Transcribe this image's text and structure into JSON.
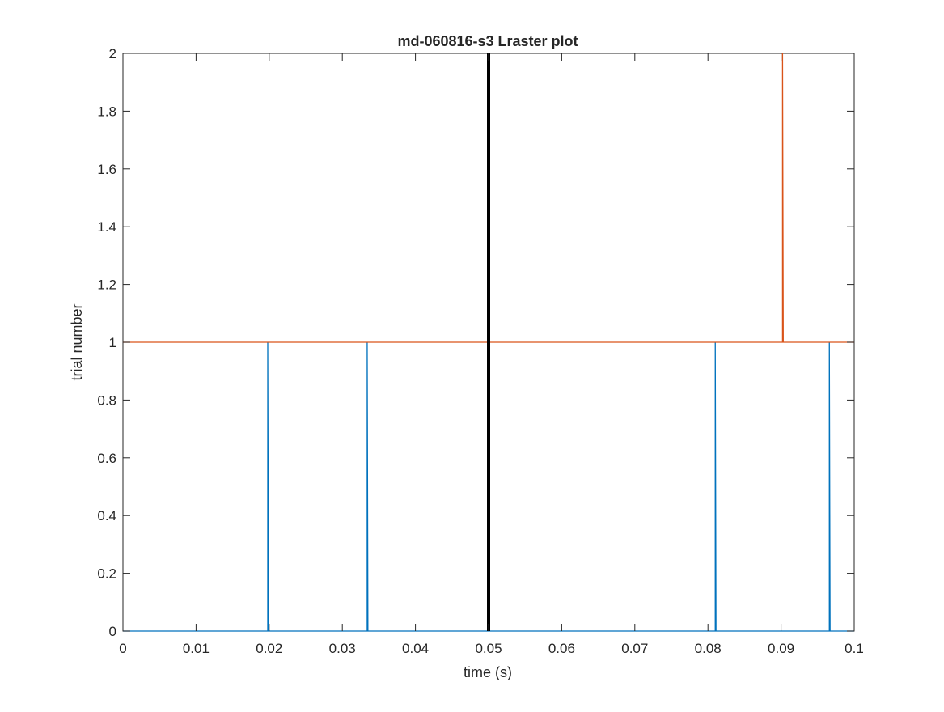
{
  "chart_data": {
    "type": "line",
    "title": "md-060816-s3 Lraster plot",
    "xlabel": "time (s)",
    "ylabel": "trial number",
    "xlim": [
      0,
      0.1
    ],
    "ylim": [
      0,
      2
    ],
    "xticks": [
      0,
      0.01,
      0.02,
      0.03,
      0.04,
      0.05,
      0.06,
      0.07,
      0.08,
      0.09,
      0.1
    ],
    "xtick_labels": [
      "0",
      "0.01",
      "0.02",
      "0.03",
      "0.04",
      "0.05",
      "0.06",
      "0.07",
      "0.08",
      "0.09",
      "0.1"
    ],
    "yticks": [
      0,
      0.2,
      0.4,
      0.6,
      0.8,
      1,
      1.2,
      1.4,
      1.6,
      1.8,
      2
    ],
    "ytick_labels": [
      "0",
      "0.2",
      "0.4",
      "0.6",
      "0.8",
      "1",
      "1.2",
      "1.4",
      "1.6",
      "1.8",
      "2"
    ],
    "grid": false,
    "legend": "none",
    "series": [
      {
        "color": "#0072BD",
        "x": [
          0,
          0.0198,
          0.0198,
          0.0199,
          0.0334,
          0.0334,
          0.0335,
          0.081,
          0.081,
          0.0811,
          0.0966,
          0.0966,
          0.0967,
          0.1
        ],
        "y": [
          0,
          0,
          1,
          0,
          0,
          1,
          0,
          0,
          1,
          0,
          0,
          1,
          0,
          0
        ]
      },
      {
        "color": "#D95319",
        "x": [
          0,
          0.0902,
          0.0902,
          0.0903,
          0.1
        ],
        "y": [
          1,
          1,
          2,
          1,
          1
        ]
      }
    ],
    "reference_line": {
      "x": 0.05,
      "color": "#000000"
    }
  }
}
